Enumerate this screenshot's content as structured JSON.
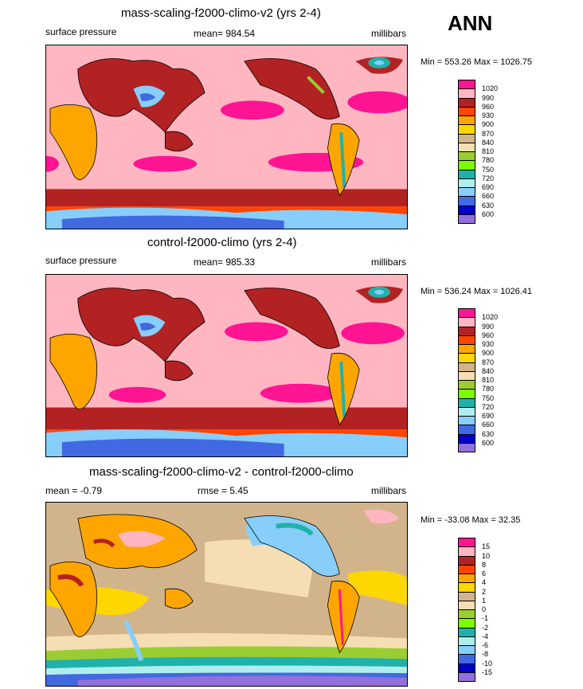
{
  "season": "ANN",
  "chart_data": [
    {
      "type": "heatmap",
      "title": "mass-scaling-f2000-climo-v2 (yrs 2-4)",
      "variable": "surface pressure",
      "mean_text": "mean= 984.54",
      "units": "millibars",
      "minmax_text": "Min = 553.26 Max = 1026.75",
      "min": 553.26,
      "max": 1026.75,
      "mean": 984.54,
      "colorbar": {
        "levels": [
          "1020",
          "990",
          "960",
          "930",
          "900",
          "870",
          "840",
          "810",
          "780",
          "750",
          "720",
          "690",
          "660",
          "630",
          "600"
        ],
        "colors": [
          "#ff1493",
          "#ffb6c1",
          "#b22222",
          "#ff4500",
          "#ffa500",
          "#ffd700",
          "#d2b48c",
          "#f5deb3",
          "#9acd32",
          "#7cfc00",
          "#20b2aa",
          "#afeeee",
          "#87cefa",
          "#4169e1",
          "#0000cd",
          "#9370db"
        ]
      }
    },
    {
      "type": "heatmap",
      "title": "control-f2000-climo (yrs 2-4)",
      "variable": "surface pressure",
      "mean_text": "mean= 985.33",
      "units": "millibars",
      "minmax_text": "Min = 536.24 Max = 1026.41",
      "min": 536.24,
      "max": 1026.41,
      "mean": 985.33,
      "colorbar": {
        "levels": [
          "1020",
          "990",
          "960",
          "930",
          "900",
          "870",
          "840",
          "810",
          "780",
          "750",
          "720",
          "690",
          "660",
          "630",
          "600"
        ],
        "colors": [
          "#ff1493",
          "#ffb6c1",
          "#b22222",
          "#ff4500",
          "#ffa500",
          "#ffd700",
          "#d2b48c",
          "#f5deb3",
          "#9acd32",
          "#7cfc00",
          "#20b2aa",
          "#afeeee",
          "#87cefa",
          "#4169e1",
          "#0000cd",
          "#9370db"
        ]
      }
    },
    {
      "type": "heatmap",
      "title": "mass-scaling-f2000-climo-v2 - control-f2000-climo",
      "mean_text": "mean =  -0.79",
      "rmse_text": "rmse =   5.45",
      "units": "millibars",
      "minmax_text": "Min = -33.08 Max =  32.35",
      "min": -33.08,
      "max": 32.35,
      "mean": -0.79,
      "rmse": 5.45,
      "colorbar": {
        "levels": [
          "15",
          "10",
          "8",
          "6",
          "4",
          "2",
          "1",
          "0",
          "-1",
          "-2",
          "-4",
          "-6",
          "-8",
          "-10",
          "-15"
        ],
        "colors": [
          "#ff1493",
          "#ffb6c1",
          "#b22222",
          "#ff4500",
          "#ffa500",
          "#ffd700",
          "#d2b48c",
          "#f5deb3",
          "#9acd32",
          "#7cfc00",
          "#20b2aa",
          "#afeeee",
          "#87cefa",
          "#4169e1",
          "#0000cd",
          "#9370db"
        ]
      }
    }
  ]
}
